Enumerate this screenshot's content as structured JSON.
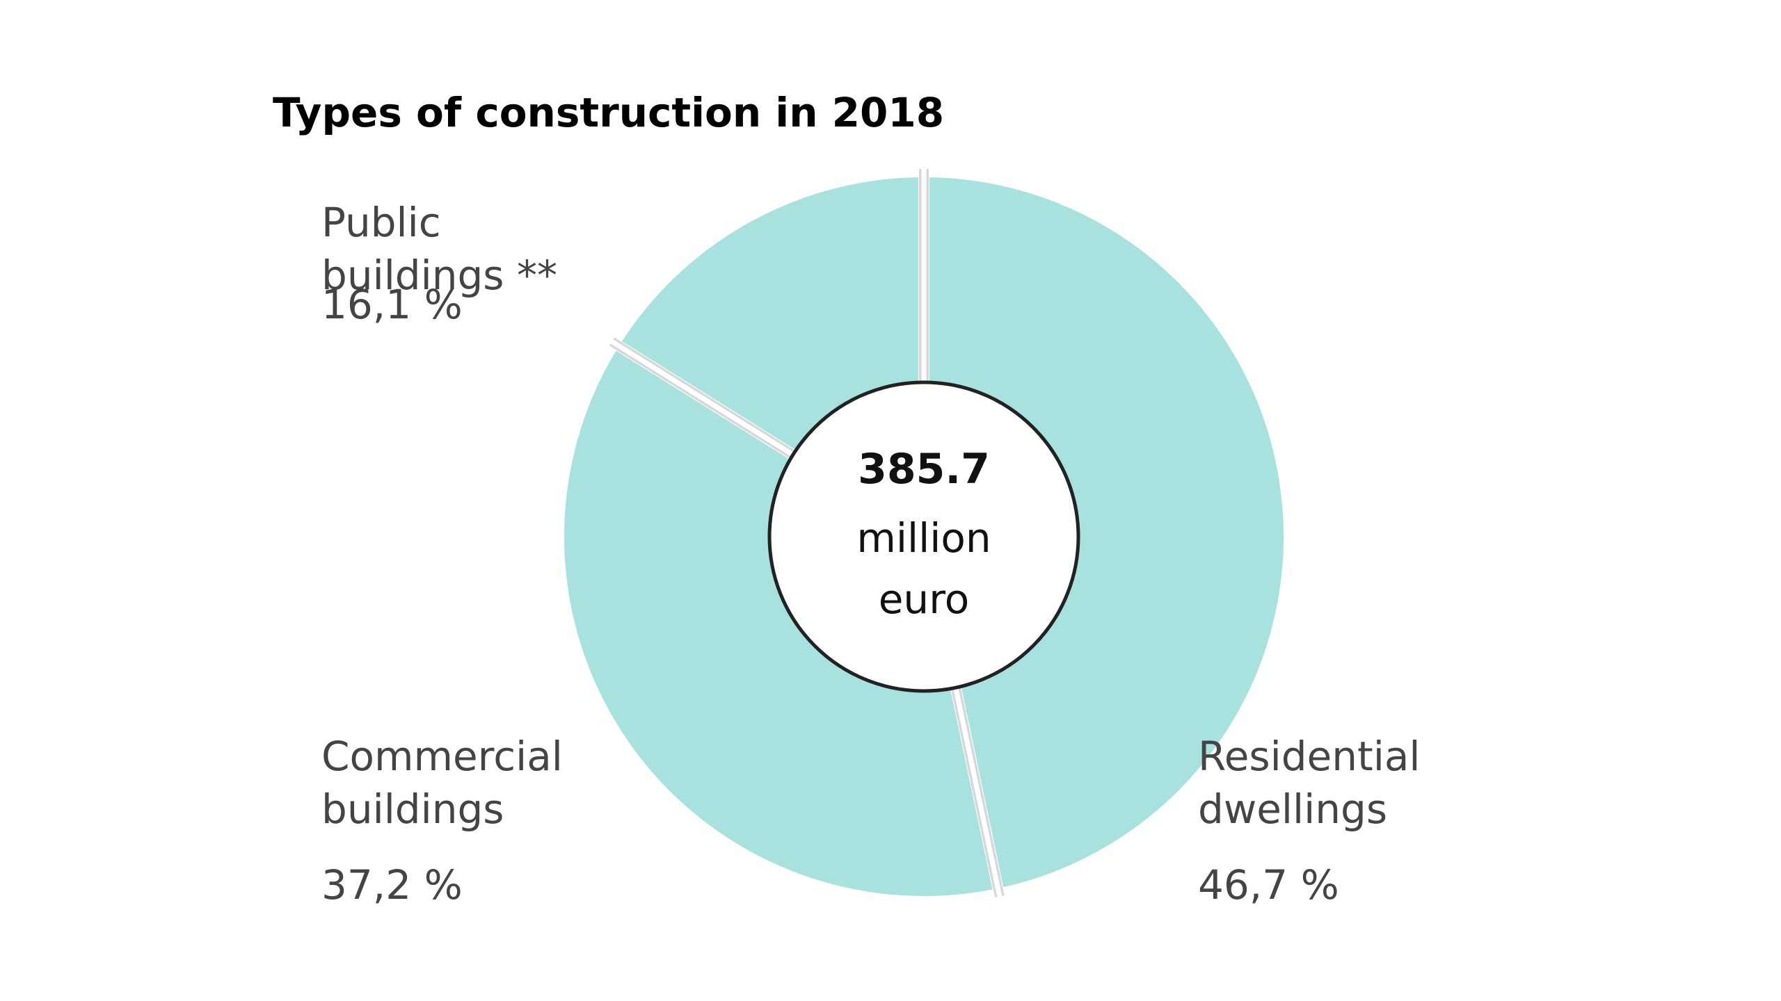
{
  "chart_data": {
    "type": "pie",
    "title": "Types of construction in 2018",
    "categories": [
      "Residential dwellings",
      "Commercial buildings",
      "Public buildings **"
    ],
    "values": [
      46.7,
      37.2,
      16.1
    ],
    "value_labels": [
      "46,7 %",
      "37,2 %",
      "16,1 %"
    ],
    "color": "#a8e2de",
    "total": 385.7,
    "total_label": "million euro"
  }
}
